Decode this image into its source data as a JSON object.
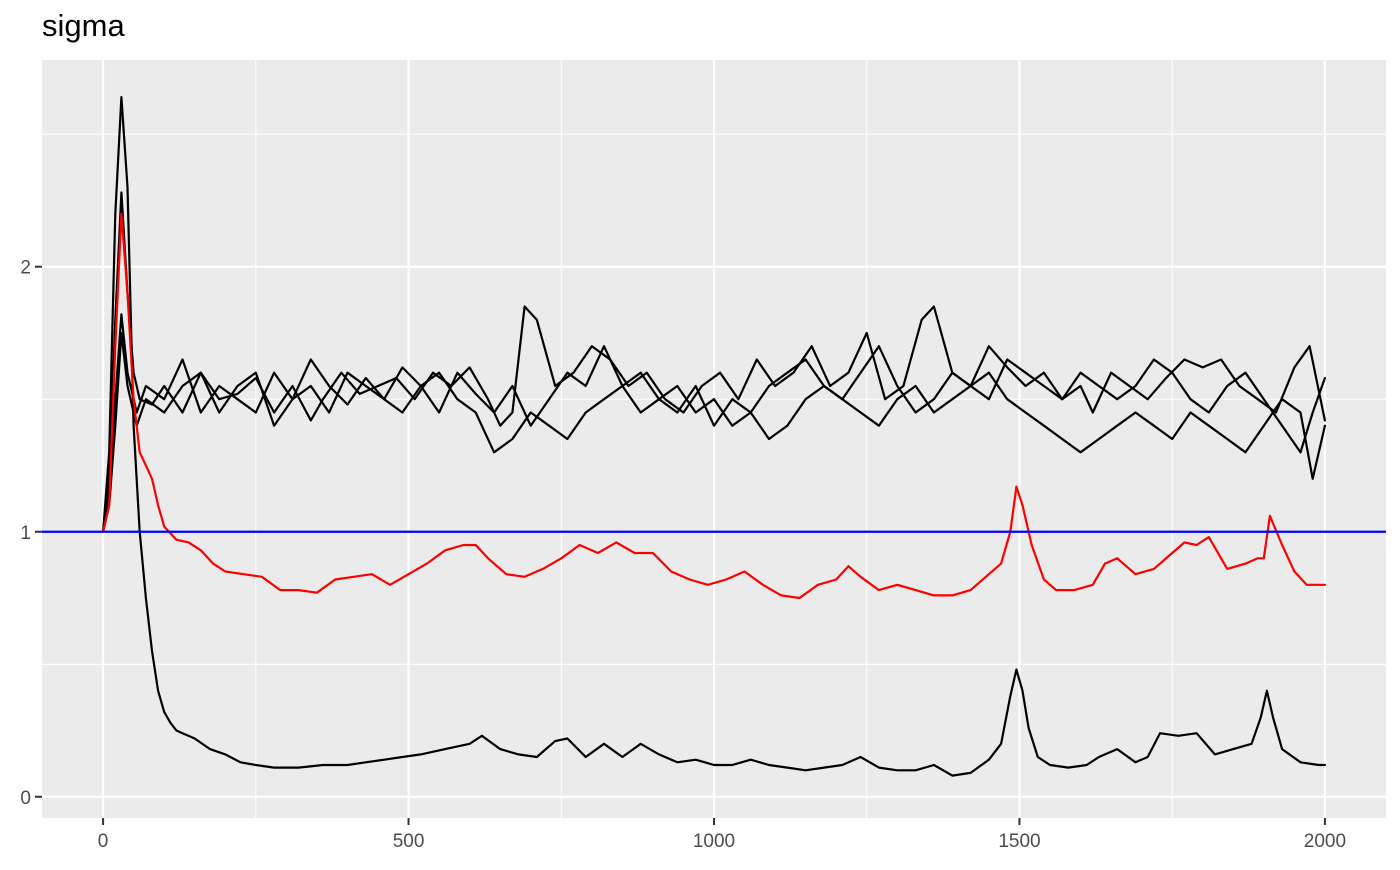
{
  "chart_data": {
    "type": "line",
    "title": "sigma",
    "xlabel": "",
    "ylabel": "",
    "xlim": [
      -100,
      2100
    ],
    "ylim": [
      -0.08,
      2.78
    ],
    "x_ticks": [
      0,
      500,
      1000,
      1500,
      2000
    ],
    "x_tick_labels": [
      "0",
      "500",
      "1000",
      "1500",
      "2000"
    ],
    "y_ticks": [
      0,
      1,
      2
    ],
    "y_tick_labels": [
      "0",
      "1",
      "2"
    ],
    "grid": true,
    "legend": "none",
    "reference_line": {
      "y": 1,
      "color": "#0000ff"
    },
    "colors": {
      "panel": "#ebebeb",
      "grid": "#ffffff",
      "trace": "#000000",
      "highlight": "#ff0000",
      "reference": "#0000ff",
      "axis_text": "#4d4d4d"
    },
    "series": [
      {
        "color": "#000000",
        "x": [
          0,
          10,
          20,
          30,
          40,
          50,
          60,
          70,
          80,
          90,
          100,
          110,
          120,
          130,
          150,
          175,
          200,
          225,
          250,
          280,
          320,
          360,
          400,
          430,
          460,
          490,
          520,
          560,
          600,
          620,
          650,
          680,
          710,
          740,
          760,
          790,
          820,
          850,
          880,
          910,
          940,
          970,
          1000,
          1030,
          1060,
          1090,
          1120,
          1150,
          1180,
          1210,
          1240,
          1270,
          1300,
          1330,
          1360,
          1390,
          1420,
          1450,
          1470,
          1485,
          1495,
          1505,
          1515,
          1530,
          1550,
          1580,
          1610,
          1630,
          1660,
          1690,
          1710,
          1730,
          1760,
          1790,
          1820,
          1850,
          1880,
          1895,
          1905,
          1915,
          1930,
          1960,
          1990,
          2000
        ],
        "y": [
          1.0,
          1.3,
          2.2,
          2.64,
          2.3,
          1.4,
          1.0,
          0.75,
          0.55,
          0.4,
          0.32,
          0.28,
          0.25,
          0.24,
          0.22,
          0.18,
          0.16,
          0.13,
          0.12,
          0.11,
          0.11,
          0.12,
          0.12,
          0.13,
          0.14,
          0.15,
          0.16,
          0.18,
          0.2,
          0.23,
          0.18,
          0.16,
          0.15,
          0.21,
          0.22,
          0.15,
          0.2,
          0.15,
          0.2,
          0.16,
          0.13,
          0.14,
          0.12,
          0.12,
          0.14,
          0.12,
          0.11,
          0.1,
          0.11,
          0.12,
          0.15,
          0.11,
          0.1,
          0.1,
          0.12,
          0.08,
          0.09,
          0.14,
          0.2,
          0.38,
          0.48,
          0.4,
          0.26,
          0.15,
          0.12,
          0.11,
          0.12,
          0.15,
          0.18,
          0.13,
          0.15,
          0.24,
          0.23,
          0.24,
          0.16,
          0.18,
          0.2,
          0.3,
          0.4,
          0.3,
          0.18,
          0.13,
          0.12,
          0.12
        ]
      },
      {
        "color": "#000000",
        "x": [
          0,
          10,
          20,
          30,
          40,
          50,
          60,
          80,
          100,
          130,
          160,
          190,
          220,
          250,
          280,
          310,
          340,
          360,
          390,
          420,
          450,
          480,
          510,
          540,
          570,
          600,
          630,
          650,
          670,
          690,
          710,
          740,
          770,
          800,
          830,
          860,
          890,
          920,
          950,
          980,
          1010,
          1040,
          1070,
          1100,
          1130,
          1160,
          1190,
          1220,
          1250,
          1280,
          1310,
          1340,
          1360,
          1390,
          1420,
          1450,
          1480,
          1510,
          1540,
          1570,
          1600,
          1620,
          1650,
          1680,
          1710,
          1740,
          1770,
          1800,
          1830,
          1860,
          1890,
          1920,
          1950,
          1975,
          2000
        ],
        "y": [
          1.0,
          1.2,
          1.8,
          2.28,
          1.9,
          1.6,
          1.5,
          1.48,
          1.55,
          1.45,
          1.6,
          1.5,
          1.52,
          1.58,
          1.45,
          1.55,
          1.42,
          1.5,
          1.6,
          1.52,
          1.55,
          1.58,
          1.5,
          1.6,
          1.55,
          1.62,
          1.5,
          1.4,
          1.45,
          1.85,
          1.8,
          1.55,
          1.6,
          1.7,
          1.65,
          1.55,
          1.6,
          1.5,
          1.45,
          1.55,
          1.6,
          1.5,
          1.65,
          1.55,
          1.6,
          1.7,
          1.55,
          1.6,
          1.75,
          1.5,
          1.55,
          1.8,
          1.85,
          1.6,
          1.55,
          1.7,
          1.62,
          1.55,
          1.6,
          1.5,
          1.55,
          1.45,
          1.6,
          1.55,
          1.5,
          1.58,
          1.65,
          1.62,
          1.65,
          1.55,
          1.5,
          1.45,
          1.62,
          1.7,
          1.42
        ]
      },
      {
        "color": "#000000",
        "x": [
          0,
          10,
          20,
          30,
          40,
          55,
          70,
          100,
          130,
          160,
          190,
          220,
          250,
          280,
          310,
          340,
          370,
          400,
          430,
          460,
          490,
          520,
          550,
          580,
          610,
          640,
          670,
          700,
          730,
          760,
          790,
          820,
          850,
          880,
          910,
          940,
          970,
          1000,
          1030,
          1060,
          1090,
          1120,
          1150,
          1180,
          1210,
          1240,
          1270,
          1300,
          1330,
          1360,
          1390,
          1420,
          1450,
          1480,
          1510,
          1540,
          1570,
          1600,
          1630,
          1660,
          1690,
          1720,
          1750,
          1780,
          1810,
          1840,
          1870,
          1900,
          1930,
          1960,
          1980,
          2000
        ],
        "y": [
          1.0,
          1.15,
          1.5,
          1.82,
          1.6,
          1.45,
          1.55,
          1.5,
          1.65,
          1.45,
          1.55,
          1.5,
          1.45,
          1.6,
          1.5,
          1.65,
          1.55,
          1.48,
          1.58,
          1.5,
          1.62,
          1.55,
          1.45,
          1.6,
          1.52,
          1.45,
          1.55,
          1.4,
          1.5,
          1.6,
          1.55,
          1.7,
          1.55,
          1.6,
          1.5,
          1.45,
          1.55,
          1.4,
          1.5,
          1.45,
          1.55,
          1.6,
          1.65,
          1.55,
          1.5,
          1.6,
          1.7,
          1.55,
          1.45,
          1.5,
          1.6,
          1.55,
          1.5,
          1.65,
          1.6,
          1.55,
          1.5,
          1.6,
          1.55,
          1.5,
          1.55,
          1.65,
          1.6,
          1.5,
          1.45,
          1.55,
          1.6,
          1.5,
          1.4,
          1.3,
          1.45,
          1.58
        ]
      },
      {
        "color": "#000000",
        "x": [
          0,
          10,
          20,
          30,
          40,
          55,
          70,
          100,
          130,
          160,
          190,
          220,
          250,
          280,
          310,
          340,
          370,
          400,
          430,
          460,
          490,
          520,
          550,
          580,
          610,
          640,
          670,
          700,
          730,
          760,
          790,
          820,
          850,
          880,
          910,
          940,
          970,
          1000,
          1030,
          1060,
          1090,
          1120,
          1150,
          1180,
          1210,
          1240,
          1270,
          1300,
          1330,
          1360,
          1390,
          1420,
          1450,
          1480,
          1510,
          1540,
          1570,
          1600,
          1630,
          1660,
          1690,
          1720,
          1750,
          1780,
          1810,
          1840,
          1870,
          1900,
          1930,
          1960,
          1980,
          2000
        ],
        "y": [
          1.0,
          1.1,
          1.4,
          1.75,
          1.55,
          1.4,
          1.5,
          1.45,
          1.55,
          1.6,
          1.45,
          1.55,
          1.6,
          1.4,
          1.5,
          1.55,
          1.45,
          1.6,
          1.55,
          1.5,
          1.45,
          1.55,
          1.6,
          1.5,
          1.45,
          1.3,
          1.35,
          1.45,
          1.4,
          1.35,
          1.45,
          1.5,
          1.55,
          1.45,
          1.5,
          1.55,
          1.45,
          1.5,
          1.4,
          1.45,
          1.35,
          1.4,
          1.5,
          1.55,
          1.5,
          1.45,
          1.4,
          1.5,
          1.55,
          1.45,
          1.5,
          1.55,
          1.6,
          1.5,
          1.45,
          1.4,
          1.35,
          1.3,
          1.35,
          1.4,
          1.45,
          1.4,
          1.35,
          1.45,
          1.4,
          1.35,
          1.3,
          1.4,
          1.5,
          1.45,
          1.2,
          1.4
        ]
      },
      {
        "color": "#ff0000",
        "x": [
          0,
          10,
          20,
          30,
          40,
          50,
          60,
          70,
          80,
          90,
          100,
          120,
          140,
          160,
          180,
          200,
          230,
          260,
          290,
          320,
          350,
          380,
          410,
          440,
          470,
          500,
          530,
          560,
          590,
          610,
          630,
          660,
          690,
          720,
          750,
          780,
          810,
          840,
          870,
          900,
          930,
          960,
          990,
          1020,
          1050,
          1080,
          1110,
          1140,
          1170,
          1200,
          1220,
          1240,
          1270,
          1300,
          1330,
          1360,
          1390,
          1420,
          1450,
          1470,
          1485,
          1495,
          1505,
          1520,
          1540,
          1560,
          1590,
          1620,
          1640,
          1660,
          1690,
          1720,
          1750,
          1770,
          1790,
          1810,
          1840,
          1870,
          1890,
          1900,
          1910,
          1930,
          1950,
          1970,
          2000
        ],
        "y": [
          1.0,
          1.1,
          1.7,
          2.2,
          1.9,
          1.5,
          1.3,
          1.25,
          1.2,
          1.1,
          1.02,
          0.97,
          0.96,
          0.93,
          0.88,
          0.85,
          0.84,
          0.83,
          0.78,
          0.78,
          0.77,
          0.82,
          0.83,
          0.84,
          0.8,
          0.84,
          0.88,
          0.93,
          0.95,
          0.95,
          0.9,
          0.84,
          0.83,
          0.86,
          0.9,
          0.95,
          0.92,
          0.96,
          0.92,
          0.92,
          0.85,
          0.82,
          0.8,
          0.82,
          0.85,
          0.8,
          0.76,
          0.75,
          0.8,
          0.82,
          0.87,
          0.83,
          0.78,
          0.8,
          0.78,
          0.76,
          0.76,
          0.78,
          0.84,
          0.88,
          1.0,
          1.17,
          1.1,
          0.95,
          0.82,
          0.78,
          0.78,
          0.8,
          0.88,
          0.9,
          0.84,
          0.86,
          0.92,
          0.96,
          0.95,
          0.98,
          0.86,
          0.88,
          0.9,
          0.9,
          1.06,
          0.95,
          0.85,
          0.8,
          0.8
        ]
      }
    ]
  }
}
